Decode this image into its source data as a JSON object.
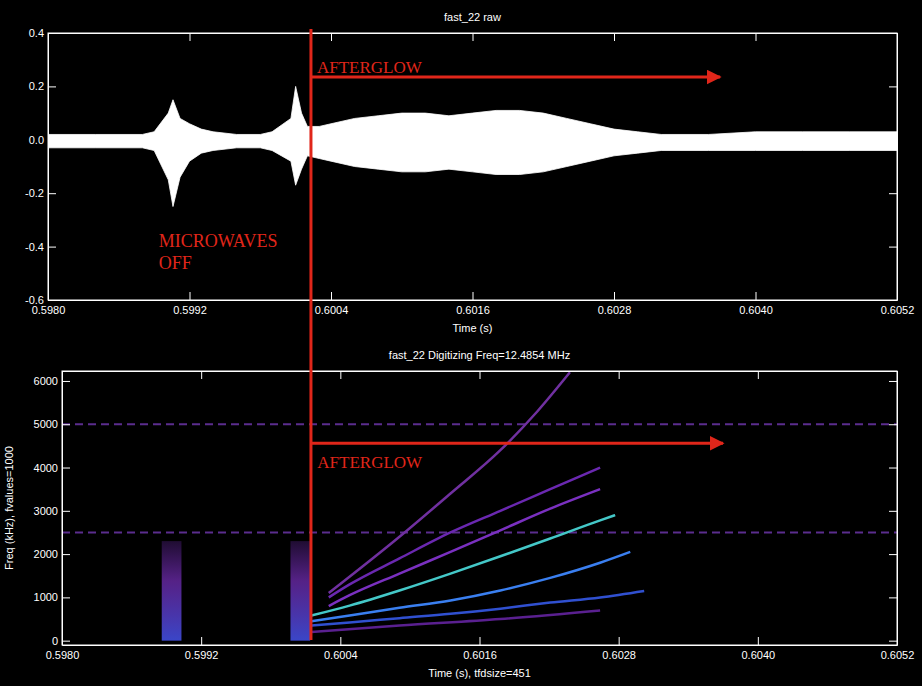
{
  "chart_data": [
    {
      "type": "area",
      "title": "fast_22 raw",
      "x_label": "Time (s)",
      "xlim": [
        0.598,
        0.6052
      ],
      "xticks": [
        {
          "value": 0.598,
          "label": "0.5980"
        },
        0.5992,
        0.6004,
        0.6016,
        0.6028,
        {
          "value": 0.604,
          "label": "0.6040"
        },
        0.6052
      ],
      "ylim": [
        -0.6,
        0.4
      ],
      "yticks": [
        -0.6,
        -0.4,
        -0.2,
        {
          "value": 0,
          "label": "0.0"
        },
        0.2,
        0.4
      ],
      "color": "#ffffff",
      "x": [
        0.598,
        0.5984,
        0.5988,
        0.5989,
        0.59902,
        0.59906,
        0.59912,
        0.5992,
        0.5993,
        0.5994,
        0.5996,
        0.5998,
        0.5999,
        0.60006,
        0.6001,
        0.60015,
        0.6002,
        0.6003,
        0.6004,
        0.6006,
        0.6008,
        0.601,
        0.6012,
        0.6014,
        0.6016,
        0.6018,
        0.602,
        0.6022,
        0.6024,
        0.6026,
        0.6028,
        0.603,
        0.6032,
        0.6036,
        0.604,
        0.6044,
        0.6048,
        0.6052
      ],
      "upper": [
        0.02,
        0.02,
        0.02,
        0.03,
        0.1,
        0.15,
        0.08,
        0.06,
        0.04,
        0.03,
        0.02,
        0.02,
        0.03,
        0.08,
        0.2,
        0.1,
        0.05,
        0.05,
        0.06,
        0.08,
        0.09,
        0.1,
        0.1,
        0.09,
        0.1,
        0.11,
        0.11,
        0.1,
        0.08,
        0.06,
        0.04,
        0.03,
        0.02,
        0.02,
        0.03,
        0.03,
        0.03,
        0.03
      ],
      "lower": [
        -0.03,
        -0.03,
        -0.03,
        -0.04,
        -0.15,
        -0.25,
        -0.14,
        -0.08,
        -0.05,
        -0.04,
        -0.03,
        -0.03,
        -0.04,
        -0.08,
        -0.17,
        -0.11,
        -0.06,
        -0.07,
        -0.08,
        -0.1,
        -0.11,
        -0.12,
        -0.12,
        -0.11,
        -0.12,
        -0.13,
        -0.13,
        -0.12,
        -0.1,
        -0.08,
        -0.06,
        -0.05,
        -0.04,
        -0.04,
        -0.04,
        -0.04,
        -0.04,
        -0.04
      ],
      "annotations": [
        {
          "type": "vline",
          "x": 0.60023,
          "color": "#e0261a"
        },
        {
          "type": "arrow",
          "text": "AFTERGLOW",
          "x": 0.60023,
          "x_end": 0.6037,
          "y": 0.235,
          "text_y": 0.25,
          "color": "#e0261a"
        },
        {
          "type": "text",
          "text": "MICROWAVES OFF",
          "x": 0.59894,
          "y": -0.4,
          "color": "#e0261a"
        }
      ]
    },
    {
      "type": "spectrogram",
      "title": "fast_22 Digitizing Freq=12.4854 MHz",
      "x_label": "Time (s), tfdsize=451",
      "y_label": "Freq (kHz), fvalues=1000",
      "xlim": [
        0.598,
        0.6052
      ],
      "xticks": [
        {
          "value": 0.598,
          "label": "0.5980"
        },
        0.5992,
        0.6004,
        0.6016,
        0.6028,
        {
          "value": 0.604,
          "label": "0.6040"
        },
        0.6052
      ],
      "ylim": [
        -100,
        6230
      ],
      "yticks": [
        0,
        1000,
        2000,
        3000,
        4000,
        5000,
        6000
      ],
      "reference_lines": [
        {
          "value": 5000,
          "color": "#5b2d8e",
          "line_style": "dashed"
        },
        {
          "value": 2500,
          "color": "#5b2d8e",
          "line_style": "dashed"
        }
      ],
      "bursts": [
        {
          "x_start": 0.59886,
          "x_end": 0.59903,
          "low": 0,
          "high": 2300,
          "color": "#3a46c8"
        },
        {
          "x_start": 0.59997,
          "x_end": 0.60014,
          "low": 0,
          "high": 2300,
          "color": "#3a46c8"
        }
      ],
      "series": [
        {
          "color": "#7a30c0",
          "x": [
            0.6003,
            0.60048,
            0.60091,
            0.60135,
            0.60178,
            0.60221,
            0.60264
          ],
          "values": [
            800,
            1050,
            1550,
            2050,
            2550,
            3050,
            3500
          ]
        },
        {
          "color": "#6a28b0",
          "x": [
            0.6003,
            0.60048,
            0.60091,
            0.60135,
            0.60178,
            0.60221,
            0.60264
          ],
          "values": [
            1000,
            1300,
            1900,
            2500,
            3000,
            3500,
            4000
          ]
        },
        {
          "color": "#7030a0",
          "x": [
            0.6003,
            0.60091,
            0.60135,
            0.60178,
            0.6021,
            0.60238
          ],
          "values": [
            1100,
            2400,
            3400,
            4400,
            5300,
            6200
          ]
        },
        {
          "color": "#5a2090",
          "x": [
            0.60015,
            0.60091,
            0.60178,
            0.60264
          ],
          "values": [
            200,
            350,
            500,
            700
          ]
        },
        {
          "color": "#3050d0",
          "x": [
            0.60015,
            0.60048,
            0.60091,
            0.60135,
            0.60178,
            0.60221,
            0.60264,
            0.60302
          ],
          "values": [
            350,
            420,
            520,
            620,
            740,
            880,
            1000,
            1150
          ]
        },
        {
          "color": "#3a7ff0",
          "x": [
            0.60015,
            0.60048,
            0.60091,
            0.60135,
            0.60178,
            0.60221,
            0.60264,
            0.6029
          ],
          "values": [
            450,
            580,
            760,
            930,
            1160,
            1450,
            1800,
            2050
          ]
        },
        {
          "color": "#44c8c8",
          "x": [
            0.60015,
            0.60048,
            0.60091,
            0.60135,
            0.60178,
            0.60221,
            0.60264,
            0.60277
          ],
          "values": [
            580,
            810,
            1160,
            1550,
            1950,
            2360,
            2780,
            2900
          ]
        }
      ],
      "annotations": [
        {
          "type": "arrow",
          "text": "AFTERGLOW",
          "x": 0.60015,
          "x_end": 0.6037,
          "y": 4560,
          "text_y": 4000,
          "color": "#e0261a"
        }
      ]
    }
  ]
}
